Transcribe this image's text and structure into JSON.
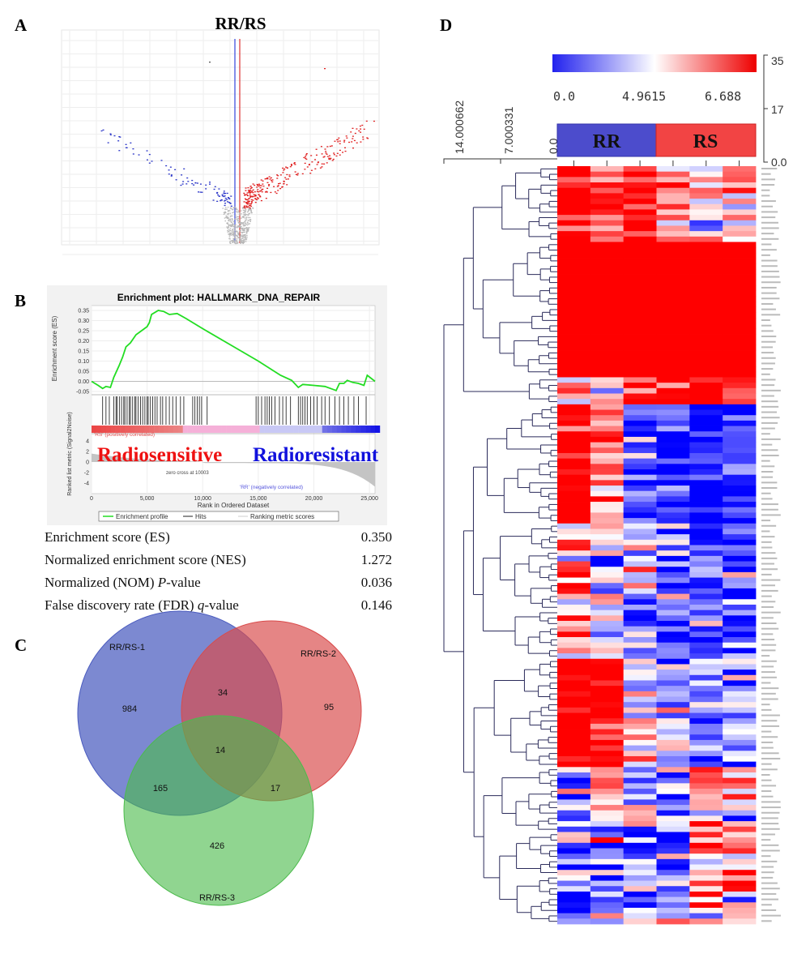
{
  "panel_labels": {
    "a": "A",
    "b": "B",
    "c": "C",
    "d": "D"
  },
  "chart_data": [
    {
      "id": "A",
      "type": "scatter",
      "title": "RR/RS",
      "description_counts": {
        "down_regulated": 90,
        "up_regulated": 260,
        "not_significant": 450
      },
      "colors": {
        "down": "#2a35c8",
        "up": "#e02020",
        "ns": "#b8b8b8",
        "threshold_left": "#3344dd",
        "threshold_right": "#dd3333"
      }
    },
    {
      "id": "B",
      "type": "line",
      "title": "Enrichment plot: HALLMARK_DNA_REPAIR",
      "xlabel": "Rank in Ordered Dataset",
      "ylabel": "Enrichment score (ES)",
      "ylabel2": "Ranked list metric (Signal2Noise)",
      "xlim": [
        0,
        25500
      ],
      "ylim": [
        -0.05,
        0.35
      ],
      "x_ticks": [
        "0",
        "5,000",
        "10,000",
        "15,000",
        "20,000",
        "25,000"
      ],
      "x_tick_values": [
        0,
        5000,
        10000,
        15000,
        20000,
        25000
      ],
      "y_ticks": [
        "0.35",
        "0.30",
        "0.25",
        "0.20",
        "0.15",
        "0.10",
        "0.05",
        "0.00",
        "-0.05"
      ],
      "y_tick_values": [
        0.35,
        0.3,
        0.25,
        0.2,
        0.15,
        0.1,
        0.05,
        0.0,
        -0.05
      ],
      "y2_ticks": [
        "4",
        "2",
        "0",
        "-2",
        "-4"
      ],
      "y2_tick_values": [
        4,
        2,
        0,
        -2,
        -4
      ],
      "es_curve": [
        [
          0,
          0
        ],
        [
          600,
          -0.02
        ],
        [
          1000,
          -0.035
        ],
        [
          1300,
          -0.025
        ],
        [
          1700,
          -0.03
        ],
        [
          2000,
          0.02
        ],
        [
          2500,
          0.08
        ],
        [
          2800,
          0.12
        ],
        [
          3100,
          0.17
        ],
        [
          3500,
          0.19
        ],
        [
          4000,
          0.23
        ],
        [
          4500,
          0.25
        ],
        [
          5000,
          0.27
        ],
        [
          5200,
          0.29
        ],
        [
          5400,
          0.33
        ],
        [
          6000,
          0.35
        ],
        [
          6500,
          0.345
        ],
        [
          7000,
          0.33
        ],
        [
          7700,
          0.335
        ],
        [
          8500,
          0.31
        ],
        [
          10000,
          0.26
        ],
        [
          12500,
          0.18
        ],
        [
          15000,
          0.1
        ],
        [
          17000,
          0.03
        ],
        [
          18000,
          0.005
        ],
        [
          18600,
          -0.03
        ],
        [
          19000,
          -0.015
        ],
        [
          20000,
          -0.02
        ],
        [
          21000,
          -0.025
        ],
        [
          22000,
          -0.045
        ],
        [
          22300,
          -0.01
        ],
        [
          22700,
          -0.01
        ],
        [
          23000,
          0.005
        ],
        [
          23500,
          -0.005
        ],
        [
          24000,
          -0.01
        ],
        [
          24500,
          -0.02
        ],
        [
          24800,
          0.03
        ],
        [
          25500,
          0.0
        ]
      ],
      "hits": [
        1000,
        1300,
        1600,
        2000,
        2200,
        2300,
        2500,
        2700,
        2900,
        3000,
        3200,
        3400,
        3500,
        3700,
        3900,
        4000,
        4200,
        4400,
        4600,
        4800,
        5000,
        5100,
        5300,
        5500,
        5700,
        5900,
        6200,
        6400,
        6700,
        7000,
        7300,
        7600,
        8000,
        8300,
        9100,
        9300,
        9500,
        9700,
        9900,
        10400,
        14800,
        15000,
        15300,
        15600,
        15800,
        16000,
        16200,
        16500,
        16900,
        17200,
        17500,
        17900,
        18600,
        18800,
        19000,
        19200,
        19400,
        19700,
        20000,
        20300,
        20700,
        21000,
        21400,
        21900,
        22300,
        22700,
        23100,
        23600,
        24000,
        24700
      ],
      "zero_cross_label": "zero cross at 10003",
      "pos_label": "'RS' (positively correlated)",
      "neg_label": "'RR' (negatively correlated)",
      "overlay_left": "Radiosensitive",
      "overlay_right": "Radioresistant",
      "legend": [
        "Enrichment profile",
        "Hits",
        "Ranking metric scores"
      ],
      "colors": {
        "curve": "#22dd22",
        "overlay_left": "#ee1111",
        "overlay_right": "#1111dd"
      }
    },
    {
      "id": "C",
      "type": "venn",
      "sets": [
        "RR/RS-1",
        "RR/RS-2",
        "RR/RS-3"
      ],
      "regions": {
        "1_only": 984,
        "2_only": 95,
        "3_only": 426,
        "1_2": 34,
        "1_3": 165,
        "2_3": 17,
        "1_2_3": 14
      },
      "colors": {
        "set1": "#4a5bbf",
        "set2": "#d94b4b",
        "set3": "#4cbb4c"
      }
    },
    {
      "id": "D",
      "type": "heatmap",
      "color_scale_labels": [
        "0.0",
        "4.9615",
        "6.688"
      ],
      "color_scale": [
        "#2222ee",
        "#ffffff",
        "#ee0000"
      ],
      "right_axis_ticks": [
        "35",
        "17",
        "0.0"
      ],
      "dendrogram_scale": [
        "14.000662",
        "7.000331",
        "0.0"
      ],
      "groups": [
        {
          "name": "RR",
          "color": "#4c4ccc",
          "columns": 3
        },
        {
          "name": "RS",
          "color": "#f24444",
          "columns": 3
        }
      ],
      "row_clusters": [
        {
          "rows": 14,
          "means": [
            0.9,
            0.6,
            0.7,
            0.2,
            0.1,
            0.3
          ],
          "noise": 0.5
        },
        {
          "rows": 25,
          "means": [
            1,
            1,
            1,
            1,
            1,
            1
          ],
          "noise": 0.15
        },
        {
          "rows": 5,
          "means": [
            0.2,
            0.1,
            0.5,
            0.8,
            0.9,
            0.7
          ],
          "noise": 0.4
        },
        {
          "rows": 22,
          "means": [
            0.9,
            0.4,
            -0.5,
            -0.6,
            -0.8,
            -0.6
          ],
          "noise": 0.4
        },
        {
          "rows": 25,
          "means": [
            0.2,
            -0.1,
            -0.2,
            -0.4,
            -0.6,
            -0.5
          ],
          "noise": 0.5
        },
        {
          "rows": 20,
          "means": [
            0.9,
            0.8,
            0.1,
            -0.2,
            -0.3,
            -0.3
          ],
          "noise": 0.4
        },
        {
          "rows": 29,
          "means": [
            -0.4,
            -0.2,
            -0.3,
            -0.3,
            0.4,
            0.2
          ],
          "noise": 0.55
        }
      ]
    }
  ],
  "stats": [
    {
      "label": "Enrichment score (ES)",
      "italic": "",
      "suffix": "",
      "value": "0.350"
    },
    {
      "label": "Normalized enrichment score (NES)",
      "italic": "",
      "suffix": "",
      "value": "1.272"
    },
    {
      "label": "Normalized (NOM) ",
      "italic": "P",
      "suffix": "-value",
      "value": "0.036"
    },
    {
      "label": "False discovery rate (FDR) ",
      "italic": "q",
      "suffix": "-value",
      "value": "0.146"
    }
  ]
}
